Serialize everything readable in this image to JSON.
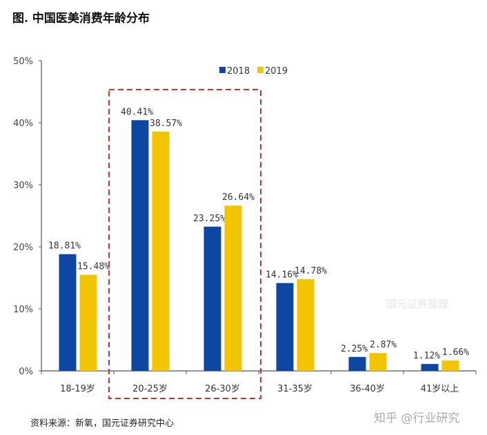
{
  "title": "图. 中国医美消费年龄分布",
  "source": "资料来源：新氧，国元证券研究中心",
  "watermark": "知乎 @行业研究",
  "inner_watermark": "国元证券整理",
  "chart_data": {
    "type": "bar",
    "categories": [
      "18-19岁",
      "20-25岁",
      "26-30岁",
      "31-35岁",
      "36-40岁",
      "41岁以上"
    ],
    "series": [
      {
        "name": "2018",
        "color": "#0D47A1",
        "values": [
          18.81,
          40.41,
          23.25,
          14.16,
          2.25,
          1.12
        ],
        "labels": [
          "18.81%",
          "40.41%",
          "23.25%",
          "14.16%",
          "2.25%",
          "1.12%"
        ]
      },
      {
        "name": "2019",
        "color": "#F2C500",
        "values": [
          15.48,
          38.57,
          26.64,
          14.78,
          2.87,
          1.66
        ],
        "labels": [
          "15.48%",
          "38.57%",
          "26.64%",
          "14.78%",
          "2.87%",
          "1.66%"
        ]
      }
    ],
    "ylim": [
      0,
      50
    ],
    "yticks": [
      "0%",
      "10%",
      "20%",
      "30%",
      "40%",
      "50%"
    ],
    "legend": "top-right",
    "highlight": {
      "categories": [
        "20-25岁",
        "26-30岁"
      ],
      "style": "red dashed box",
      "color": "#D32F2F"
    }
  }
}
